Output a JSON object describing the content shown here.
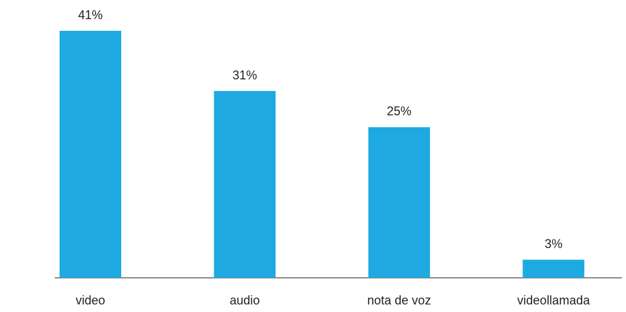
{
  "chart_data": {
    "type": "bar",
    "categories": [
      "video",
      "audio",
      "nota de voz",
      "videollamada"
    ],
    "values": [
      41,
      31,
      25,
      3
    ],
    "value_labels": [
      "41%",
      "31%",
      "25%",
      "3%"
    ],
    "color": "#1ea9e1"
  }
}
